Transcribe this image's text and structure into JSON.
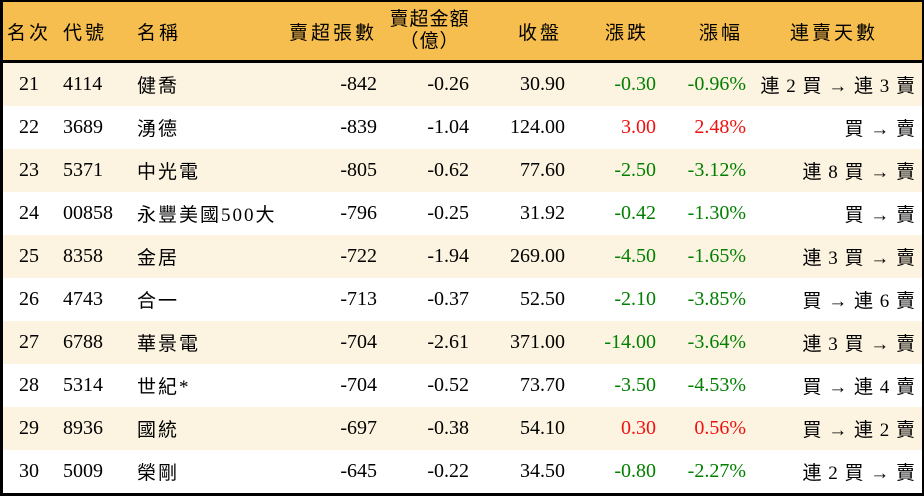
{
  "colors": {
    "header_background": "#f6be4e",
    "row_alternate_background": "#fcf4e0",
    "row_background": "#ffffff",
    "border": "#000000",
    "positive_change": "#ee1111",
    "negative_change": "#007f00",
    "text": "#000000"
  },
  "chart_data": {
    "type": "table",
    "title": "",
    "columns": [
      {
        "key": "rank",
        "label": "名次"
      },
      {
        "key": "code",
        "label": "代號"
      },
      {
        "key": "name",
        "label": "名稱"
      },
      {
        "key": "sell_volume",
        "label": "賣超張數"
      },
      {
        "key": "sell_amount",
        "label": "賣超金額",
        "label_line2": "（億）"
      },
      {
        "key": "close",
        "label": "收盤"
      },
      {
        "key": "change",
        "label": "漲跌"
      },
      {
        "key": "change_pct",
        "label": "漲幅"
      },
      {
        "key": "streak",
        "label": "連賣天數"
      }
    ],
    "rows": [
      {
        "rank": "21",
        "code": "4114",
        "name": "健喬",
        "sell_volume": "-842",
        "sell_amount": "-0.26",
        "close": "30.90",
        "change": "-0.30",
        "change_pct": "-0.96%",
        "direction": "down",
        "streak": "連 2 買 → 連 3 賣"
      },
      {
        "rank": "22",
        "code": "3689",
        "name": "湧德",
        "sell_volume": "-839",
        "sell_amount": "-1.04",
        "close": "124.00",
        "change": "3.00",
        "change_pct": "2.48%",
        "direction": "up",
        "streak": "買 → 賣"
      },
      {
        "rank": "23",
        "code": "5371",
        "name": "中光電",
        "sell_volume": "-805",
        "sell_amount": "-0.62",
        "close": "77.60",
        "change": "-2.50",
        "change_pct": "-3.12%",
        "direction": "down",
        "streak": "連 8 買 → 賣"
      },
      {
        "rank": "24",
        "code": "00858",
        "name": "永豐美國500大",
        "sell_volume": "-796",
        "sell_amount": "-0.25",
        "close": "31.92",
        "change": "-0.42",
        "change_pct": "-1.30%",
        "direction": "down",
        "streak": "買 → 賣"
      },
      {
        "rank": "25",
        "code": "8358",
        "name": "金居",
        "sell_volume": "-722",
        "sell_amount": "-1.94",
        "close": "269.00",
        "change": "-4.50",
        "change_pct": "-1.65%",
        "direction": "down",
        "streak": "連 3 買 → 賣"
      },
      {
        "rank": "26",
        "code": "4743",
        "name": "合一",
        "sell_volume": "-713",
        "sell_amount": "-0.37",
        "close": "52.50",
        "change": "-2.10",
        "change_pct": "-3.85%",
        "direction": "down",
        "streak": "買 → 連 6 賣"
      },
      {
        "rank": "27",
        "code": "6788",
        "name": "華景電",
        "sell_volume": "-704",
        "sell_amount": "-2.61",
        "close": "371.00",
        "change": "-14.00",
        "change_pct": "-3.64%",
        "direction": "down",
        "streak": "連 3 買 → 賣"
      },
      {
        "rank": "28",
        "code": "5314",
        "name": "世紀*",
        "sell_volume": "-704",
        "sell_amount": "-0.52",
        "close": "73.70",
        "change": "-3.50",
        "change_pct": "-4.53%",
        "direction": "down",
        "streak": "買 → 連 4 賣"
      },
      {
        "rank": "29",
        "code": "8936",
        "name": "國統",
        "sell_volume": "-697",
        "sell_amount": "-0.38",
        "close": "54.10",
        "change": "0.30",
        "change_pct": "0.56%",
        "direction": "up",
        "streak": "買 → 連 2 賣"
      },
      {
        "rank": "30",
        "code": "5009",
        "name": "榮剛",
        "sell_volume": "-645",
        "sell_amount": "-0.22",
        "close": "34.50",
        "change": "-0.80",
        "change_pct": "-2.27%",
        "direction": "down",
        "streak": "連 2 買 → 賣"
      }
    ]
  }
}
